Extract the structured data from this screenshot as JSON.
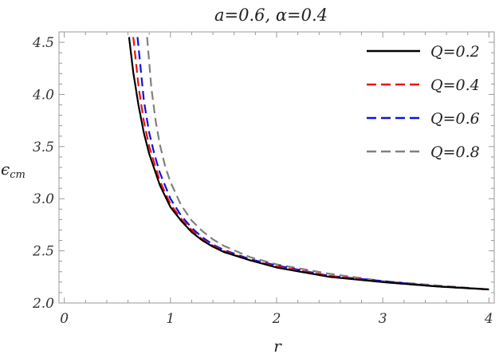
{
  "chart_data": {
    "type": "line",
    "title": "a=0.6, α=0.4",
    "xlabel": "r",
    "ylabel": "ϵcm",
    "ylabel_main": "ϵ",
    "ylabel_sub": "cm",
    "xlim": [
      -0.05,
      4.05
    ],
    "ylim": [
      2.0,
      4.6
    ],
    "xticks": [
      0,
      1,
      2,
      3,
      4
    ],
    "yticks": [
      2.0,
      2.5,
      3.0,
      3.5,
      4.0,
      4.5
    ],
    "ytick_labels": [
      "2.0",
      "2.5",
      "3.0",
      "3.5",
      "4.0",
      "4.5"
    ],
    "grid": false,
    "legend_position": "top-right",
    "series": [
      {
        "name": "Q=0.2",
        "color": "#000000",
        "style": "solid",
        "x": [
          0.61,
          0.65,
          0.7,
          0.75,
          0.8,
          0.9,
          1.0,
          1.1,
          1.2,
          1.3,
          1.4,
          1.5,
          1.75,
          2.0,
          2.5,
          3.0,
          3.5,
          4.0
        ],
        "y": [
          4.55,
          4.21,
          3.89,
          3.63,
          3.43,
          3.13,
          2.92,
          2.79,
          2.68,
          2.6,
          2.54,
          2.49,
          2.41,
          2.34,
          2.25,
          2.2,
          2.16,
          2.13
        ]
      },
      {
        "name": "Q=0.4",
        "color": "#ee1111",
        "style": "dashed",
        "x": [
          0.65,
          0.7,
          0.75,
          0.8,
          0.9,
          1.0,
          1.1,
          1.2,
          1.3,
          1.4,
          1.5,
          1.75,
          2.0,
          2.5,
          3.0,
          3.5,
          4.0
        ],
        "y": [
          4.55,
          4.07,
          3.74,
          3.5,
          3.17,
          2.95,
          2.81,
          2.7,
          2.61,
          2.55,
          2.5,
          2.41,
          2.35,
          2.26,
          2.2,
          2.16,
          2.13
        ]
      },
      {
        "name": "Q=0.6",
        "color": "#1111dd",
        "style": "dashed",
        "x": [
          0.69,
          0.75,
          0.8,
          0.85,
          0.9,
          1.0,
          1.1,
          1.2,
          1.3,
          1.4,
          1.5,
          1.75,
          2.0,
          2.5,
          3.0,
          3.5,
          4.0
        ],
        "y": [
          4.55,
          3.94,
          3.63,
          3.42,
          3.25,
          3.0,
          2.84,
          2.72,
          2.63,
          2.56,
          2.51,
          2.42,
          2.36,
          2.26,
          2.21,
          2.16,
          2.13
        ]
      },
      {
        "name": "Q=0.8",
        "color": "#808080",
        "style": "dashed",
        "x": [
          0.78,
          0.82,
          0.86,
          0.9,
          0.95,
          1.0,
          1.1,
          1.2,
          1.3,
          1.4,
          1.5,
          1.75,
          2.0,
          2.5,
          3.0,
          3.5,
          4.0
        ],
        "y": [
          4.55,
          4.06,
          3.75,
          3.52,
          3.31,
          3.16,
          2.94,
          2.79,
          2.69,
          2.61,
          2.55,
          2.44,
          2.37,
          2.28,
          2.21,
          2.17,
          2.13
        ]
      }
    ]
  }
}
